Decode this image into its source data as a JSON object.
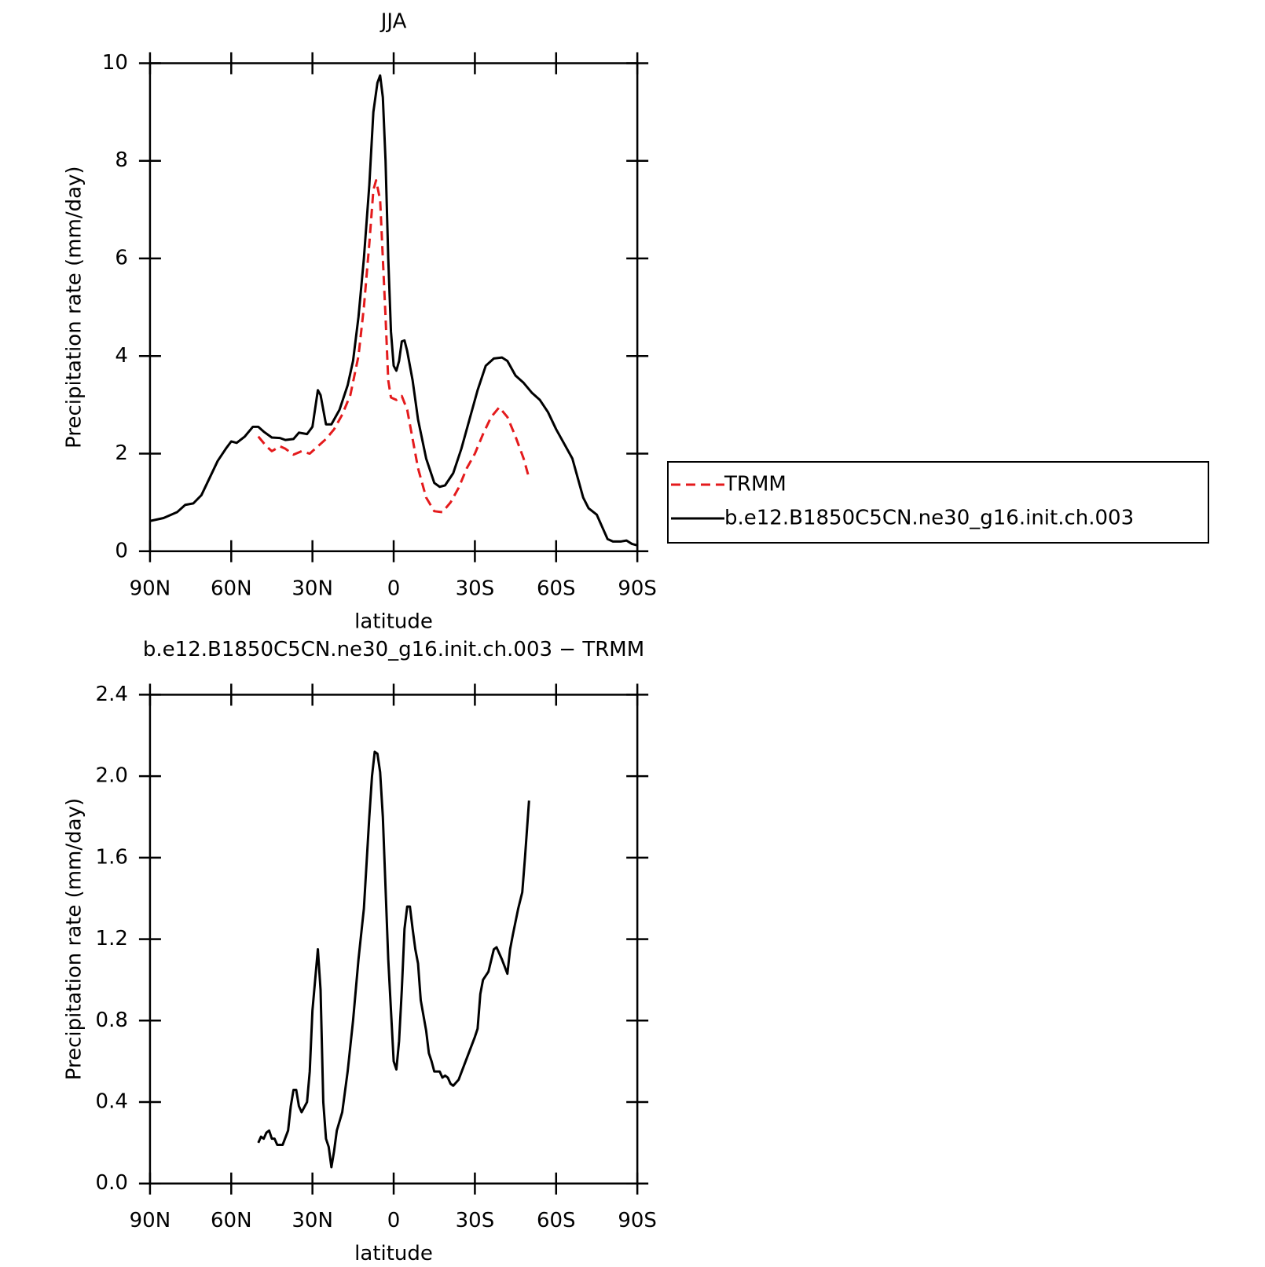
{
  "chart_data": [
    {
      "type": "line",
      "title": "JJA",
      "x_label": "latitude",
      "y_label": "Precipitation rate (mm/day)",
      "xlim": [
        90,
        -90
      ],
      "ylim": [
        0,
        10
      ],
      "xticks": [
        {
          "value": 90,
          "label": "90N"
        },
        {
          "value": 60,
          "label": "60N"
        },
        {
          "value": 30,
          "label": "30N"
        },
        0,
        {
          "value": -30,
          "label": "30S"
        },
        {
          "value": -60,
          "label": "60S"
        },
        {
          "value": -90,
          "label": "90S"
        }
      ],
      "yticks": [
        0,
        2,
        4,
        6,
        8,
        10
      ],
      "legend": "right",
      "series": [
        {
          "name": "TRMM",
          "color": "#e41a1c",
          "dash": true,
          "x": [
            50,
            47,
            45,
            42,
            40,
            37,
            34,
            31,
            28,
            25,
            22,
            19,
            16,
            13,
            11,
            9,
            7.5,
            6.5,
            5,
            4,
            3,
            2,
            1,
            -1,
            -3,
            -5,
            -7,
            -9,
            -12,
            -15,
            -18,
            -21,
            -24,
            -27,
            -30,
            -33,
            -36,
            -39,
            -42,
            -45,
            -48,
            -50
          ],
          "values": [
            2.35,
            2.15,
            2.05,
            2.15,
            2.1,
            1.98,
            2.05,
            2.0,
            2.15,
            2.3,
            2.5,
            2.8,
            3.2,
            4.0,
            5.0,
            6.3,
            7.4,
            7.6,
            7.2,
            6.0,
            4.8,
            3.5,
            3.15,
            3.1,
            3.18,
            2.9,
            2.3,
            1.7,
            1.1,
            0.82,
            0.8,
            1.0,
            1.3,
            1.7,
            2.0,
            2.4,
            2.75,
            2.95,
            2.75,
            2.35,
            1.9,
            1.5
          ]
        },
        {
          "name": "b.e12.B1850C5CN.ne30_g16.init.ch.003",
          "color": "#000000",
          "dash": false,
          "x": [
            90,
            85,
            80,
            77,
            74,
            71,
            68,
            65,
            62,
            60,
            58,
            55,
            52,
            50,
            48,
            45,
            42,
            40,
            37,
            35,
            32,
            30,
            28,
            27,
            25,
            23,
            20,
            17,
            15,
            13,
            11,
            9,
            7.5,
            6,
            5,
            4,
            3,
            2,
            1,
            0,
            -1,
            -2,
            -3,
            -4,
            -5,
            -7,
            -9,
            -12,
            -15,
            -17,
            -19,
            -22,
            -25,
            -28,
            -31,
            -34,
            -37,
            -40,
            -42,
            -45,
            -48,
            -51,
            -54,
            -57,
            -60,
            -63,
            -66,
            -68,
            -70,
            -72,
            -75,
            -77,
            -79,
            -81,
            -84,
            -86,
            -88,
            -90
          ],
          "values": [
            0.62,
            0.68,
            0.8,
            0.95,
            0.98,
            1.15,
            1.5,
            1.85,
            2.1,
            2.25,
            2.22,
            2.35,
            2.55,
            2.55,
            2.45,
            2.33,
            2.32,
            2.28,
            2.3,
            2.43,
            2.4,
            2.55,
            3.3,
            3.2,
            2.6,
            2.6,
            2.9,
            3.4,
            3.9,
            4.8,
            6.0,
            7.5,
            9.0,
            9.6,
            9.75,
            9.3,
            8.0,
            6.0,
            4.5,
            3.8,
            3.7,
            3.9,
            4.3,
            4.32,
            4.1,
            3.5,
            2.7,
            1.9,
            1.4,
            1.32,
            1.35,
            1.6,
            2.1,
            2.7,
            3.3,
            3.8,
            3.95,
            3.97,
            3.9,
            3.6,
            3.45,
            3.25,
            3.1,
            2.85,
            2.5,
            2.2,
            1.9,
            1.5,
            1.1,
            0.88,
            0.75,
            0.5,
            0.25,
            0.2,
            0.2,
            0.22,
            0.15,
            0.12
          ]
        }
      ]
    },
    {
      "type": "line",
      "title": "b.e12.B1850C5CN.ne30_g16.init.ch.003 − TRMM",
      "x_label": "latitude",
      "y_label": "Precipitation rate (mm/day)",
      "xlim": [
        90,
        -90
      ],
      "ylim": [
        0,
        2.4
      ],
      "xticks": [
        {
          "value": 90,
          "label": "90N"
        },
        {
          "value": 60,
          "label": "60N"
        },
        {
          "value": 30,
          "label": "30N"
        },
        0,
        {
          "value": -30,
          "label": "30S"
        },
        {
          "value": -60,
          "label": "60S"
        },
        {
          "value": -90,
          "label": "90S"
        }
      ],
      "yticks": [
        {
          "value": 0,
          "label": "0.0"
        },
        0.4,
        0.8,
        1.2,
        1.6,
        {
          "value": 2,
          "label": "2.0"
        },
        2.4
      ],
      "series": [
        {
          "color": "#000000",
          "dash": false,
          "x": [
            50,
            49,
            48,
            47,
            46,
            45,
            44,
            43,
            41,
            39,
            38,
            37,
            36,
            35,
            34,
            32,
            31,
            30,
            28,
            27,
            26,
            25,
            24,
            23,
            22,
            21,
            19,
            17,
            15,
            13,
            11,
            9,
            8,
            7,
            6,
            5,
            4,
            3,
            2,
            1,
            0,
            -1,
            -2,
            -3,
            -4,
            -5,
            -6,
            -7,
            -8,
            -9,
            -10,
            -12,
            -13,
            -14,
            -15,
            -16,
            -17,
            -18,
            -19,
            -20,
            -21,
            -22,
            -24,
            -26,
            -28,
            -30,
            -31,
            -32,
            -33,
            -35,
            -37,
            -38,
            -40,
            -42,
            -43,
            -44,
            -46,
            -47.5,
            -48.5,
            -50
          ],
          "values": [
            0.2,
            0.23,
            0.22,
            0.25,
            0.26,
            0.22,
            0.22,
            0.19,
            0.19,
            0.26,
            0.38,
            0.46,
            0.46,
            0.38,
            0.35,
            0.4,
            0.55,
            0.85,
            1.15,
            0.95,
            0.4,
            0.22,
            0.18,
            0.08,
            0.16,
            0.26,
            0.35,
            0.55,
            0.8,
            1.1,
            1.35,
            1.8,
            2.0,
            2.12,
            2.11,
            2.02,
            1.8,
            1.45,
            1.1,
            0.85,
            0.6,
            0.56,
            0.7,
            0.95,
            1.25,
            1.36,
            1.36,
            1.25,
            1.15,
            1.08,
            0.9,
            0.75,
            0.64,
            0.6,
            0.55,
            0.55,
            0.55,
            0.52,
            0.53,
            0.52,
            0.49,
            0.48,
            0.51,
            0.58,
            0.65,
            0.72,
            0.76,
            0.93,
            1.0,
            1.04,
            1.15,
            1.16,
            1.1,
            1.03,
            1.15,
            1.22,
            1.35,
            1.43,
            1.6,
            1.88
          ]
        }
      ]
    }
  ]
}
